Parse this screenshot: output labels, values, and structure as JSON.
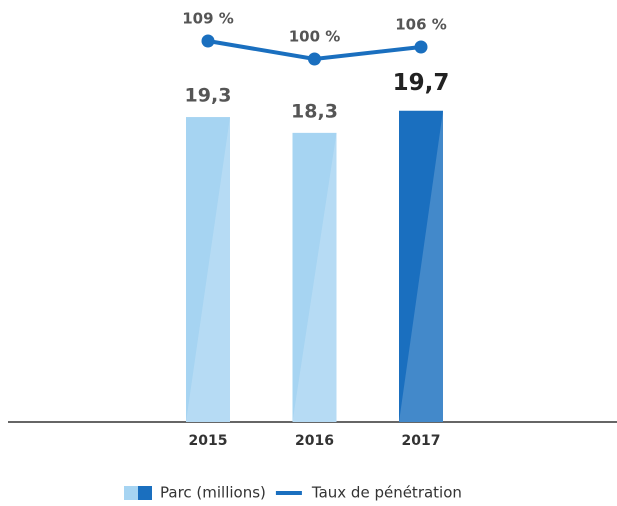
{
  "chart_data": {
    "type": "bar",
    "categories": [
      "2015",
      "2016",
      "2017"
    ],
    "series": [
      {
        "name": "Parc (millions)",
        "type": "bar",
        "colors": [
          "#a6d4f2",
          "#a6d4f2",
          "#1a6fbf"
        ],
        "values": [
          19.3,
          18.3,
          19.7
        ],
        "value_labels": [
          "19,3",
          "18,3",
          "19,7"
        ]
      },
      {
        "name": "Taux de pénétration",
        "type": "line",
        "axis": "y2",
        "color": "#1a6fbf",
        "values": [
          109,
          100,
          106
        ],
        "value_labels": [
          "109 %",
          "100 %",
          "106 %"
        ]
      }
    ],
    "ylim": [
      0,
      20
    ],
    "y2lim": [
      100,
      110
    ]
  }
}
